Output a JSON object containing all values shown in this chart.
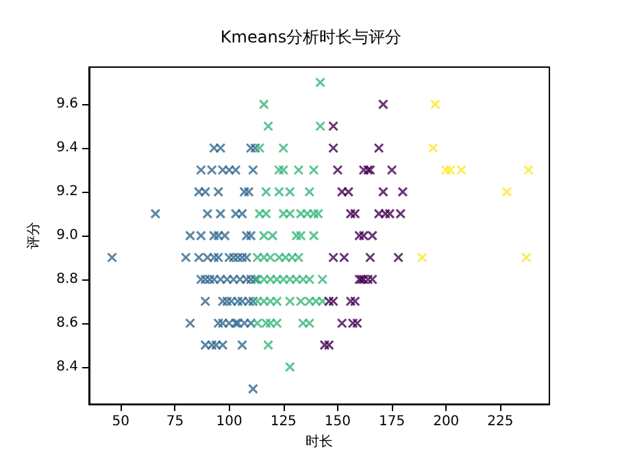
{
  "chart_data": {
    "type": "scatter",
    "title": "Kmeans分析时长与评分",
    "xlabel": "时长",
    "ylabel": "评分",
    "xlim": [
      35.4,
      247.6
    ],
    "ylim": [
      8.23,
      9.77
    ],
    "xticks": [
      50,
      75,
      100,
      125,
      150,
      175,
      200,
      225
    ],
    "yticks": [
      {
        "value": 8.4,
        "label": "8.4"
      },
      {
        "value": 8.6,
        "label": "8.6"
      },
      {
        "value": 8.8,
        "label": "8.8"
      },
      {
        "value": 9.0,
        "label": "9.0"
      },
      {
        "value": 9.2,
        "label": "9.2"
      },
      {
        "value": 9.4,
        "label": "9.4"
      },
      {
        "value": 9.6,
        "label": "9.6"
      }
    ],
    "grid": false,
    "marker": "cross",
    "series": [
      {
        "color": "#31688e",
        "x": [
          93,
          96,
          110,
          112,
          87,
          92,
          97,
          100,
          103,
          111,
          86,
          89,
          95,
          107,
          109,
          66,
          90,
          96,
          103,
          106,
          82,
          87,
          93,
          95,
          98,
          108,
          110,
          46,
          80,
          86,
          90,
          93,
          95,
          100,
          102,
          104,
          106,
          108,
          87,
          89,
          91,
          93,
          96,
          99,
          102,
          105,
          108,
          110,
          112,
          89,
          97,
          99,
          101,
          104,
          106,
          109,
          111,
          82,
          95,
          97,
          100,
          103,
          104,
          107,
          110,
          89,
          92,
          94,
          97,
          106,
          111
        ],
        "values": [
          9.4,
          9.4,
          9.4,
          9.4,
          9.3,
          9.3,
          9.3,
          9.3,
          9.3,
          9.3,
          9.2,
          9.2,
          9.2,
          9.2,
          9.2,
          9.1,
          9.1,
          9.1,
          9.1,
          9.1,
          9.0,
          9.0,
          9.0,
          9.0,
          9.0,
          9.0,
          9.0,
          8.9,
          8.9,
          8.9,
          8.9,
          8.9,
          8.9,
          8.9,
          8.9,
          8.9,
          8.9,
          8.9,
          8.8,
          8.8,
          8.8,
          8.8,
          8.8,
          8.8,
          8.8,
          8.8,
          8.8,
          8.8,
          8.8,
          8.7,
          8.7,
          8.7,
          8.7,
          8.7,
          8.7,
          8.7,
          8.7,
          8.6,
          8.6,
          8.6,
          8.6,
          8.6,
          8.6,
          8.6,
          8.6,
          8.5,
          8.5,
          8.5,
          8.5,
          8.5,
          8.3
        ]
      },
      {
        "color": "#35b779",
        "x": [
          142,
          116,
          118,
          142,
          114,
          125,
          123,
          125,
          132,
          139,
          117,
          123,
          128,
          137,
          114,
          117,
          125,
          128,
          133,
          136,
          139,
          141,
          116,
          120,
          131,
          133,
          139,
          113,
          116,
          119,
          123,
          126,
          129,
          132,
          113,
          116,
          119,
          122,
          125,
          128,
          131,
          134,
          137,
          143,
          113,
          116,
          119,
          122,
          128,
          133,
          137,
          140,
          143,
          113,
          117,
          119,
          122,
          134,
          137,
          118,
          128
        ],
        "values": [
          9.7,
          9.6,
          9.5,
          9.5,
          9.4,
          9.4,
          9.3,
          9.3,
          9.3,
          9.3,
          9.2,
          9.2,
          9.2,
          9.2,
          9.1,
          9.1,
          9.1,
          9.1,
          9.1,
          9.1,
          9.1,
          9.1,
          9.0,
          9.0,
          9.0,
          9.0,
          9.0,
          8.9,
          8.9,
          8.9,
          8.9,
          8.9,
          8.9,
          8.9,
          8.8,
          8.8,
          8.8,
          8.8,
          8.8,
          8.8,
          8.8,
          8.8,
          8.8,
          8.8,
          8.7,
          8.7,
          8.7,
          8.7,
          8.7,
          8.7,
          8.7,
          8.7,
          8.7,
          8.6,
          8.6,
          8.6,
          8.6,
          8.6,
          8.6,
          8.5,
          8.4
        ]
      },
      {
        "color": "#440154",
        "x": [
          171,
          148,
          148,
          169,
          150,
          162,
          164,
          165,
          175,
          152,
          155,
          171,
          180,
          156,
          158,
          169,
          172,
          174,
          179,
          160,
          162,
          166,
          148,
          153,
          165,
          178,
          160,
          161,
          162,
          164,
          166,
          146,
          148,
          156,
          158,
          152,
          157,
          159,
          144,
          146
        ],
        "values": [
          9.6,
          9.5,
          9.4,
          9.4,
          9.3,
          9.3,
          9.3,
          9.3,
          9.3,
          9.2,
          9.2,
          9.2,
          9.2,
          9.1,
          9.1,
          9.1,
          9.1,
          9.1,
          9.1,
          9.0,
          9.0,
          9.0,
          8.9,
          8.9,
          8.9,
          8.9,
          8.8,
          8.8,
          8.8,
          8.8,
          8.8,
          8.7,
          8.7,
          8.7,
          8.7,
          8.6,
          8.6,
          8.6,
          8.5,
          8.5
        ]
      },
      {
        "color": "#fde725",
        "x": [
          195,
          194,
          200,
          202,
          207,
          238,
          228,
          189,
          237
        ],
        "values": [
          9.6,
          9.4,
          9.3,
          9.3,
          9.3,
          9.3,
          9.2,
          8.9,
          8.9
        ]
      }
    ]
  }
}
